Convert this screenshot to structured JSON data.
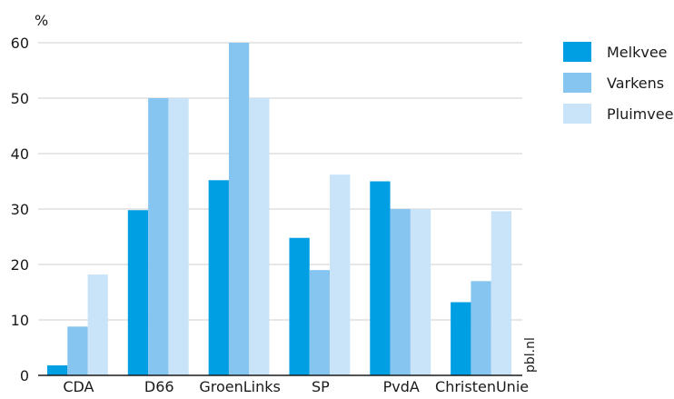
{
  "chart_data": {
    "type": "bar",
    "ylabel": "%",
    "ylim": [
      0,
      60
    ],
    "yticks": [
      0,
      10,
      20,
      30,
      40,
      50,
      60
    ],
    "grid": true,
    "legend_position": "top-right",
    "categories": [
      "CDA",
      "D66",
      "GroenLinks",
      "SP",
      "PvdA",
      "ChristenUnie"
    ],
    "series": [
      {
        "name": "Melkvee",
        "color": "#009fe3",
        "values": [
          1.8,
          29.8,
          35.2,
          24.8,
          35.0,
          13.2
        ]
      },
      {
        "name": "Varkens",
        "color": "#86c5f0",
        "values": [
          8.8,
          50.0,
          60.0,
          19.0,
          30.0,
          17.0
        ]
      },
      {
        "name": "Pluimvee",
        "color": "#c9e4f8",
        "values": [
          18.2,
          50.0,
          50.0,
          36.2,
          30.0,
          29.6
        ]
      }
    ]
  },
  "source_label": "pbl.nl"
}
